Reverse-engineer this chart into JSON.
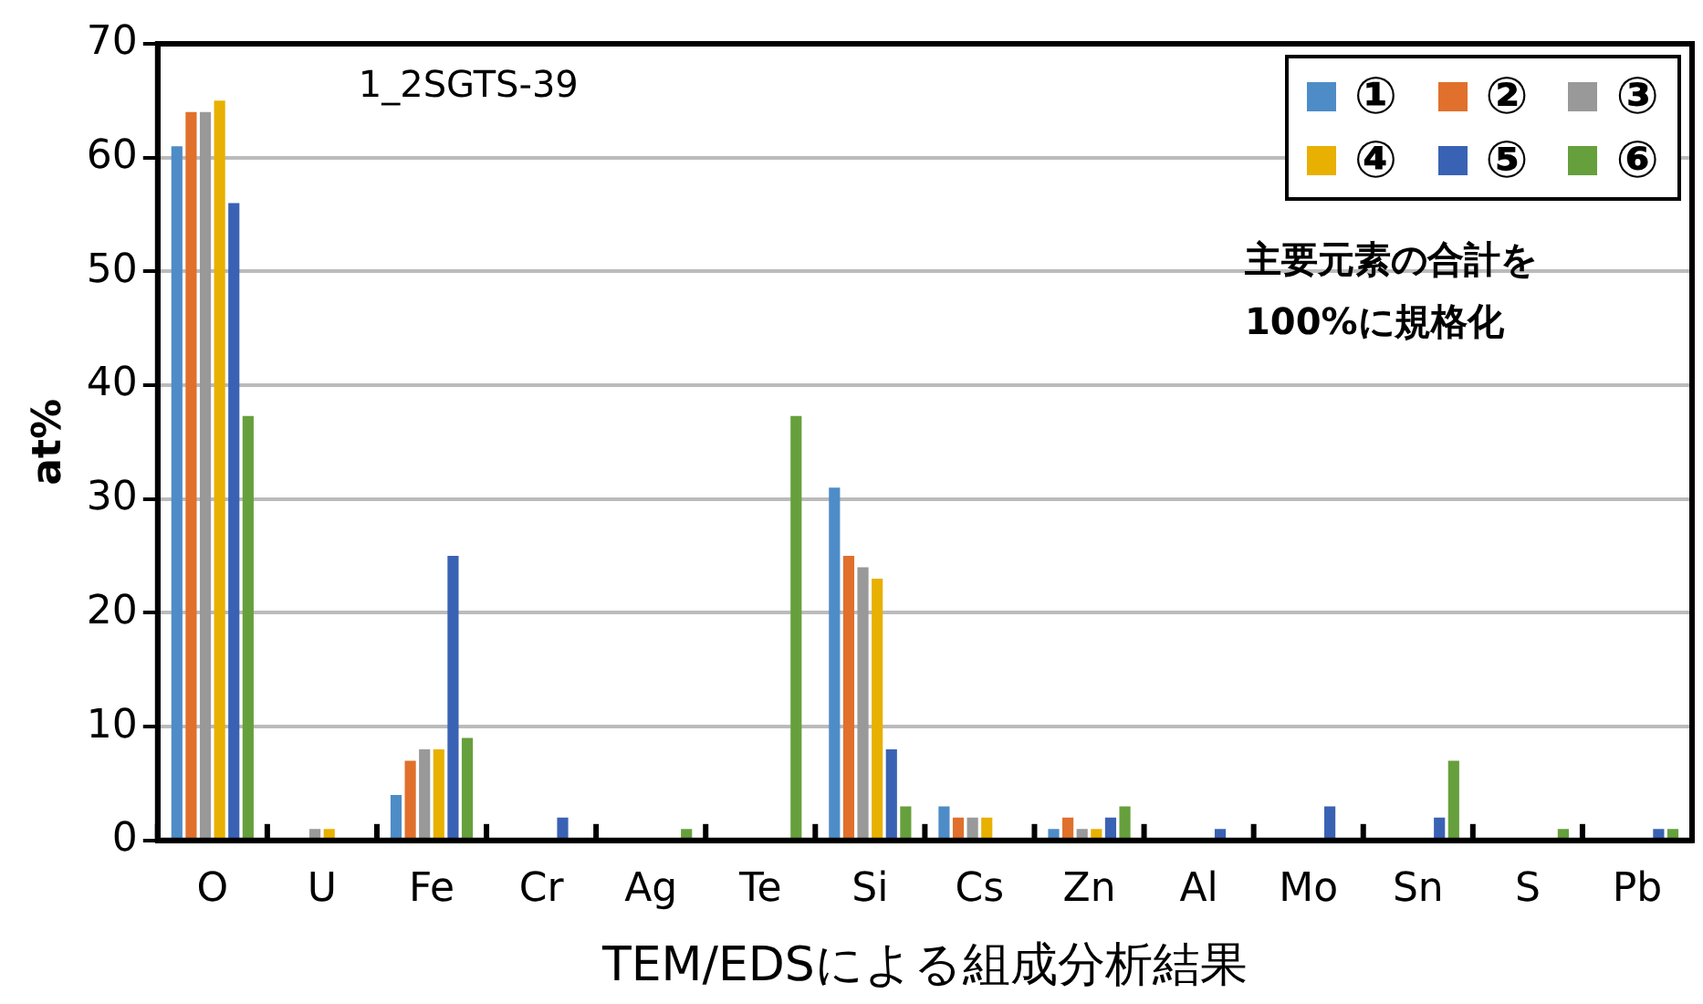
{
  "chart_data": {
    "type": "bar",
    "xlabel": "TEM/EDSによる組成分析結果",
    "ylabel": "at%",
    "categories": [
      "O",
      "U",
      "Fe",
      "Cr",
      "Ag",
      "Te",
      "Si",
      "Cs",
      "Zn",
      "Al",
      "Mo",
      "Sn",
      "S",
      "Pb"
    ],
    "series": [
      {
        "name": "①",
        "color": "#4e8cc8",
        "values": [
          61,
          0,
          4,
          0,
          0,
          0,
          31,
          3,
          1,
          0,
          0,
          0,
          0,
          0
        ]
      },
      {
        "name": "②",
        "color": "#e0702c",
        "values": [
          64,
          0,
          7,
          0,
          0,
          0,
          25,
          2,
          2,
          0,
          0,
          0,
          0,
          0
        ]
      },
      {
        "name": "③",
        "color": "#999999",
        "values": [
          64,
          1,
          8,
          0,
          0,
          0,
          24,
          2,
          1,
          0,
          0,
          0,
          0,
          0
        ]
      },
      {
        "name": "④",
        "color": "#e8b000",
        "values": [
          65,
          1,
          8,
          0,
          0,
          0,
          23,
          2,
          1,
          0,
          0,
          0,
          0,
          0
        ]
      },
      {
        "name": "⑤",
        "color": "#3a62b4",
        "values": [
          56,
          0,
          25,
          2,
          0,
          0,
          8,
          0,
          2,
          1,
          3,
          2,
          0,
          1
        ]
      },
      {
        "name": "⑥",
        "color": "#66a03c",
        "values": [
          37.3,
          0,
          9,
          0,
          1,
          37.3,
          3,
          0,
          3,
          0,
          0,
          7,
          1,
          1
        ]
      }
    ],
    "ylim": [
      0,
      70
    ],
    "yticks": [
      0,
      10,
      20,
      30,
      40,
      50,
      60,
      70
    ],
    "grid": "y",
    "legend": "top right",
    "annotations": [
      "1_2SGTS-39",
      "主要元素の合計を\n100%に規格化"
    ]
  }
}
